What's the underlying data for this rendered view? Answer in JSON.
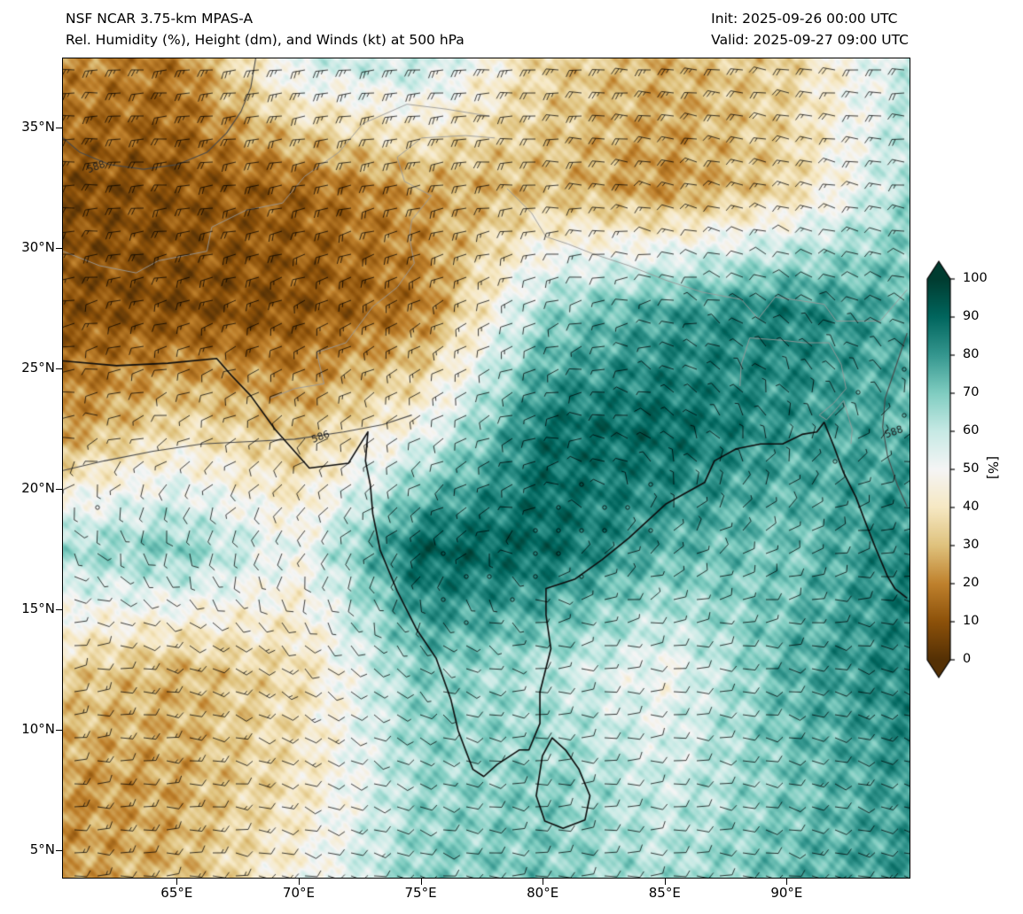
{
  "header": {
    "title_line1": "NSF NCAR 3.75-km MPAS-A",
    "title_line2": "Rel. Humidity (%), Height (dm), and Winds (kt) at 500 hPa",
    "init_line": "Init: 2025-09-26 00:00 UTC",
    "valid_line": "Valid: 2025-09-27 09:00 UTC"
  },
  "axes": {
    "lat_ticks": [
      {
        "value": 35,
        "label": "35°N"
      },
      {
        "value": 30,
        "label": "30°N"
      },
      {
        "value": 25,
        "label": "25°N"
      },
      {
        "value": 20,
        "label": "20°N"
      },
      {
        "value": 15,
        "label": "15°N"
      },
      {
        "value": 10,
        "label": "10°N"
      },
      {
        "value": 5,
        "label": "5°N"
      }
    ],
    "lon_ticks": [
      {
        "value": 65,
        "label": "65°E"
      },
      {
        "value": 70,
        "label": "70°E"
      },
      {
        "value": 75,
        "label": "75°E"
      },
      {
        "value": 80,
        "label": "80°E"
      },
      {
        "value": 85,
        "label": "85°E"
      },
      {
        "value": 90,
        "label": "90°E"
      }
    ]
  },
  "colorbar": {
    "label": "[%]",
    "ticks": [
      100,
      90,
      80,
      70,
      60,
      50,
      40,
      30,
      20,
      10,
      0
    ],
    "stops": [
      [
        0,
        "#543005"
      ],
      [
        10,
        "#8c510a"
      ],
      [
        20,
        "#bf812d"
      ],
      [
        30,
        "#dfc27d"
      ],
      [
        40,
        "#f6e8c3"
      ],
      [
        50,
        "#f5f5f5"
      ],
      [
        60,
        "#c7eae5"
      ],
      [
        70,
        "#80cdc1"
      ],
      [
        80,
        "#35978f"
      ],
      [
        90,
        "#01665e"
      ],
      [
        100,
        "#003c30"
      ]
    ]
  },
  "chart_data": {
    "type": "heatmap",
    "title": "NSF NCAR 3.75-km MPAS-A",
    "subtitle": "Rel. Humidity (%), Height (dm), and Winds (kt) at 500 hPa",
    "xlabel": "",
    "ylabel": "",
    "value_range": [
      0,
      100
    ],
    "value_units": "%",
    "extent": {
      "lon_min": 60.3,
      "lon_max": 95.0,
      "lat_min": 3.9,
      "lat_max": 37.9
    },
    "rh_grid": {
      "lons": [
        60,
        65,
        70,
        75,
        80,
        85,
        90,
        95
      ],
      "lats": [
        37.5,
        32.5,
        27.5,
        22.5,
        17.5,
        12.5,
        7.5,
        2.5
      ],
      "values": [
        [
          22,
          18,
          55,
          60,
          35,
          28,
          35,
          60
        ],
        [
          8,
          10,
          14,
          25,
          30,
          22,
          35,
          65
        ],
        [
          10,
          8,
          10,
          18,
          65,
          78,
          85,
          75
        ],
        [
          22,
          38,
          30,
          50,
          88,
          90,
          80,
          75
        ],
        [
          65,
          70,
          50,
          92,
          90,
          75,
          70,
          85
        ],
        [
          35,
          28,
          38,
          70,
          62,
          50,
          75,
          85
        ],
        [
          22,
          26,
          40,
          66,
          70,
          58,
          70,
          80
        ],
        [
          25,
          30,
          50,
          70,
          70,
          65,
          75,
          80
        ]
      ]
    },
    "wind_grid": {
      "units": "kt",
      "lons": [
        60,
        65,
        70,
        75,
        80,
        85,
        90,
        95
      ],
      "lats": [
        37.5,
        32.5,
        27.5,
        22.5,
        17.5,
        12.5,
        7.5,
        2.5
      ],
      "u": [
        [
          25,
          25,
          25,
          25,
          25,
          25,
          20,
          20
        ],
        [
          20,
          20,
          20,
          20,
          18,
          15,
          15,
          15
        ],
        [
          12,
          14,
          15,
          15,
          10,
          5,
          5,
          8
        ],
        [
          5,
          6,
          8,
          10,
          8,
          5,
          0,
          -3
        ],
        [
          -4,
          0,
          5,
          5,
          0,
          -5,
          -8,
          -10
        ],
        [
          -10,
          -14,
          -10,
          -5,
          -8,
          -10,
          -10,
          -10
        ],
        [
          -14,
          -14,
          -10,
          -9,
          -10,
          -10,
          -10,
          -12
        ],
        [
          -12,
          -12,
          -11,
          -10,
          -10,
          -10,
          -11,
          -12
        ]
      ],
      "v": [
        [
          0,
          2,
          3,
          2,
          0,
          -2,
          -3,
          0
        ],
        [
          0,
          2,
          4,
          4,
          0,
          -4,
          -4,
          -2
        ],
        [
          2,
          4,
          6,
          8,
          4,
          0,
          -4,
          -4
        ],
        [
          0,
          2,
          5,
          6,
          2,
          -4,
          -5,
          -2
        ],
        [
          4,
          8,
          8,
          4,
          0,
          -4,
          -4,
          0
        ],
        [
          -4,
          4,
          8,
          4,
          0,
          0,
          2,
          4
        ],
        [
          0,
          0,
          4,
          4,
          0,
          0,
          3,
          4
        ],
        [
          0,
          0,
          2,
          2,
          0,
          0,
          2,
          3
        ]
      ]
    },
    "contours": [
      {
        "label": "588",
        "label_pos": [
          61.6,
          33.4
        ],
        "points": [
          [
            60.3,
            34.6
          ],
          [
            61.0,
            34.0
          ],
          [
            62.2,
            33.5
          ],
          [
            63.6,
            33.3
          ],
          [
            65.0,
            33.5
          ],
          [
            66.2,
            34.0
          ],
          [
            67.0,
            34.8
          ],
          [
            67.6,
            35.7
          ],
          [
            68.0,
            36.7
          ],
          [
            68.2,
            37.9
          ]
        ]
      },
      {
        "label": "586",
        "label_pos": [
          70.8,
          22.2
        ],
        "points": [
          [
            60.3,
            20.8
          ],
          [
            62.0,
            21.2
          ],
          [
            64.0,
            21.6
          ],
          [
            66.0,
            21.9
          ],
          [
            68.0,
            22.0
          ],
          [
            69.8,
            22.1
          ],
          [
            71.8,
            22.4
          ],
          [
            73.4,
            22.7
          ],
          [
            74.6,
            23.1
          ]
        ]
      },
      {
        "label": "588",
        "label_pos": [
          94.3,
          22.4
        ],
        "points": [
          [
            94.9,
            26.5
          ],
          [
            94.4,
            25.0
          ],
          [
            94.0,
            23.8
          ],
          [
            93.9,
            22.6
          ],
          [
            94.1,
            21.4
          ],
          [
            94.5,
            20.2
          ],
          [
            94.9,
            19.3
          ]
        ]
      }
    ],
    "coastlines": [
      [
        [
          60.3,
          25.35
        ],
        [
          62.5,
          25.15
        ],
        [
          64.6,
          25.25
        ],
        [
          66.6,
          25.45
        ],
        [
          67.2,
          24.75
        ],
        [
          68.0,
          23.9
        ],
        [
          69.0,
          22.5
        ],
        [
          70.4,
          20.9
        ],
        [
          72.0,
          21.1
        ],
        [
          72.8,
          22.4
        ],
        [
          72.7,
          21.2
        ],
        [
          72.9,
          20.2
        ],
        [
          73.0,
          19.0
        ],
        [
          73.3,
          17.5
        ],
        [
          74.0,
          15.8
        ],
        [
          74.8,
          14.2
        ],
        [
          75.6,
          13.0
        ],
        [
          76.2,
          11.3
        ],
        [
          76.5,
          10.0
        ],
        [
          77.1,
          8.4
        ],
        [
          77.55,
          8.1
        ],
        [
          78.1,
          8.6
        ],
        [
          79.0,
          9.2
        ],
        [
          79.4,
          9.2
        ],
        [
          79.85,
          10.3
        ],
        [
          79.85,
          11.6
        ],
        [
          80.3,
          13.4
        ],
        [
          80.1,
          14.8
        ],
        [
          80.1,
          15.9
        ],
        [
          81.3,
          16.3
        ],
        [
          82.4,
          17.1
        ],
        [
          83.5,
          18.0
        ],
        [
          85.0,
          19.4
        ],
        [
          86.6,
          20.3
        ],
        [
          87.0,
          21.2
        ],
        [
          87.9,
          21.7
        ],
        [
          88.9,
          21.9
        ],
        [
          89.8,
          21.9
        ],
        [
          90.6,
          22.3
        ],
        [
          91.2,
          22.4
        ],
        [
          91.5,
          22.8
        ],
        [
          91.9,
          21.8
        ],
        [
          92.3,
          20.7
        ],
        [
          92.8,
          19.7
        ],
        [
          93.1,
          18.9
        ],
        [
          93.6,
          17.6
        ],
        [
          94.1,
          16.4
        ],
        [
          94.4,
          15.9
        ],
        [
          94.9,
          15.5
        ]
      ],
      [
        [
          79.95,
          8.95
        ],
        [
          80.35,
          9.7
        ],
        [
          80.9,
          9.2
        ],
        [
          81.45,
          8.4
        ],
        [
          81.9,
          7.3
        ],
        [
          81.7,
          6.3
        ],
        [
          80.8,
          5.95
        ],
        [
          80.05,
          6.25
        ],
        [
          79.7,
          7.3
        ],
        [
          79.95,
          8.95
        ]
      ]
    ],
    "borders": [
      [
        [
          60.3,
          29.9
        ],
        [
          61.8,
          29.3
        ],
        [
          63.3,
          29.0
        ],
        [
          64.2,
          29.5
        ],
        [
          66.2,
          29.9
        ],
        [
          66.4,
          30.9
        ],
        [
          67.8,
          31.6
        ],
        [
          69.3,
          31.9
        ],
        [
          70.2,
          33.0
        ],
        [
          71.6,
          34.0
        ],
        [
          72.6,
          35.2
        ],
        [
          74.4,
          36.0
        ],
        [
          76.0,
          35.8
        ],
        [
          77.8,
          35.5
        ]
      ],
      [
        [
          68.8,
          23.8
        ],
        [
          69.8,
          24.2
        ],
        [
          71.0,
          24.4
        ],
        [
          70.7,
          25.7
        ],
        [
          71.9,
          26.1
        ],
        [
          73.0,
          27.6
        ],
        [
          74.0,
          28.4
        ],
        [
          74.7,
          29.4
        ],
        [
          74.5,
          30.5
        ],
        [
          74.6,
          31.2
        ],
        [
          75.4,
          32.2
        ],
        [
          74.3,
          32.8
        ],
        [
          74.0,
          33.8
        ],
        [
          75.0,
          34.6
        ],
        [
          76.8,
          34.7
        ],
        [
          78.0,
          34.6
        ]
      ],
      [
        [
          78.5,
          32.5
        ],
        [
          79.5,
          31.5
        ],
        [
          80.1,
          30.5
        ],
        [
          81.0,
          30.2
        ],
        [
          82.0,
          29.8
        ],
        [
          83.5,
          29.3
        ],
        [
          85.0,
          28.7
        ],
        [
          86.5,
          28.2
        ],
        [
          88.1,
          27.9
        ],
        [
          88.8,
          27.1
        ],
        [
          89.5,
          28.0
        ],
        [
          91.5,
          27.7
        ],
        [
          92.0,
          27.0
        ],
        [
          93.8,
          27.0
        ],
        [
          94.9,
          28.3
        ]
      ],
      [
        [
          88.05,
          24.3
        ],
        [
          88.1,
          25.2
        ],
        [
          88.45,
          26.3
        ],
        [
          89.8,
          26.2
        ],
        [
          90.7,
          26.1
        ],
        [
          91.7,
          26.1
        ],
        [
          92.2,
          25.2
        ],
        [
          92.4,
          24.2
        ],
        [
          91.9,
          23.6
        ],
        [
          91.3,
          23.1
        ],
        [
          91.6,
          22.9
        ],
        [
          92.3,
          23.7
        ],
        [
          92.65,
          22.5
        ],
        [
          92.6,
          21.9
        ]
      ]
    ]
  }
}
